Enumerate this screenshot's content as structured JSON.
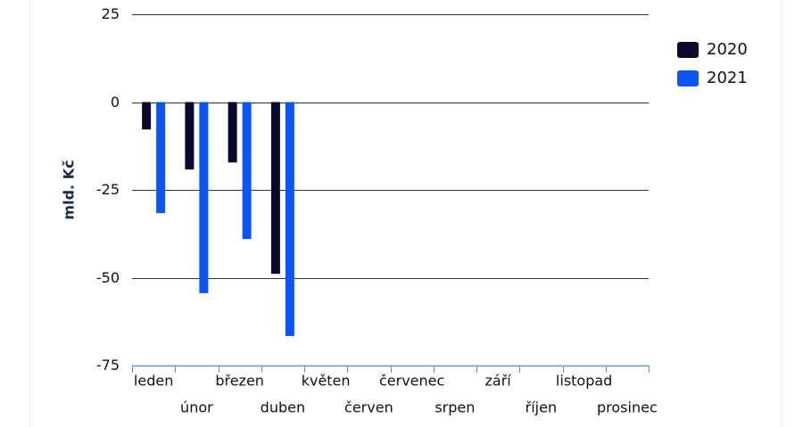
{
  "chart_data": {
    "type": "bar",
    "y_label": "mld. Kč",
    "categories": [
      "leden",
      "únor",
      "březen",
      "duben",
      "květen",
      "červen",
      "červenec",
      "srpen",
      "září",
      "říjen",
      "listopad",
      "prosinec"
    ],
    "series": [
      {
        "name": "2020",
        "color": "#0a0a2e",
        "values": [
          -7.8,
          -19.2,
          -17.2,
          -48.9,
          null,
          null,
          null,
          null,
          null,
          null,
          null,
          null
        ]
      },
      {
        "name": "2021",
        "color": "#0a55f5",
        "values": [
          -31.6,
          -54.4,
          -39,
          -66.6,
          null,
          null,
          null,
          null,
          null,
          null,
          null,
          null
        ]
      }
    ],
    "ylim": [
      -75,
      25
    ],
    "yticks": [
      -75,
      -50,
      -25,
      0,
      25
    ],
    "grid": true,
    "legend": "right"
  }
}
